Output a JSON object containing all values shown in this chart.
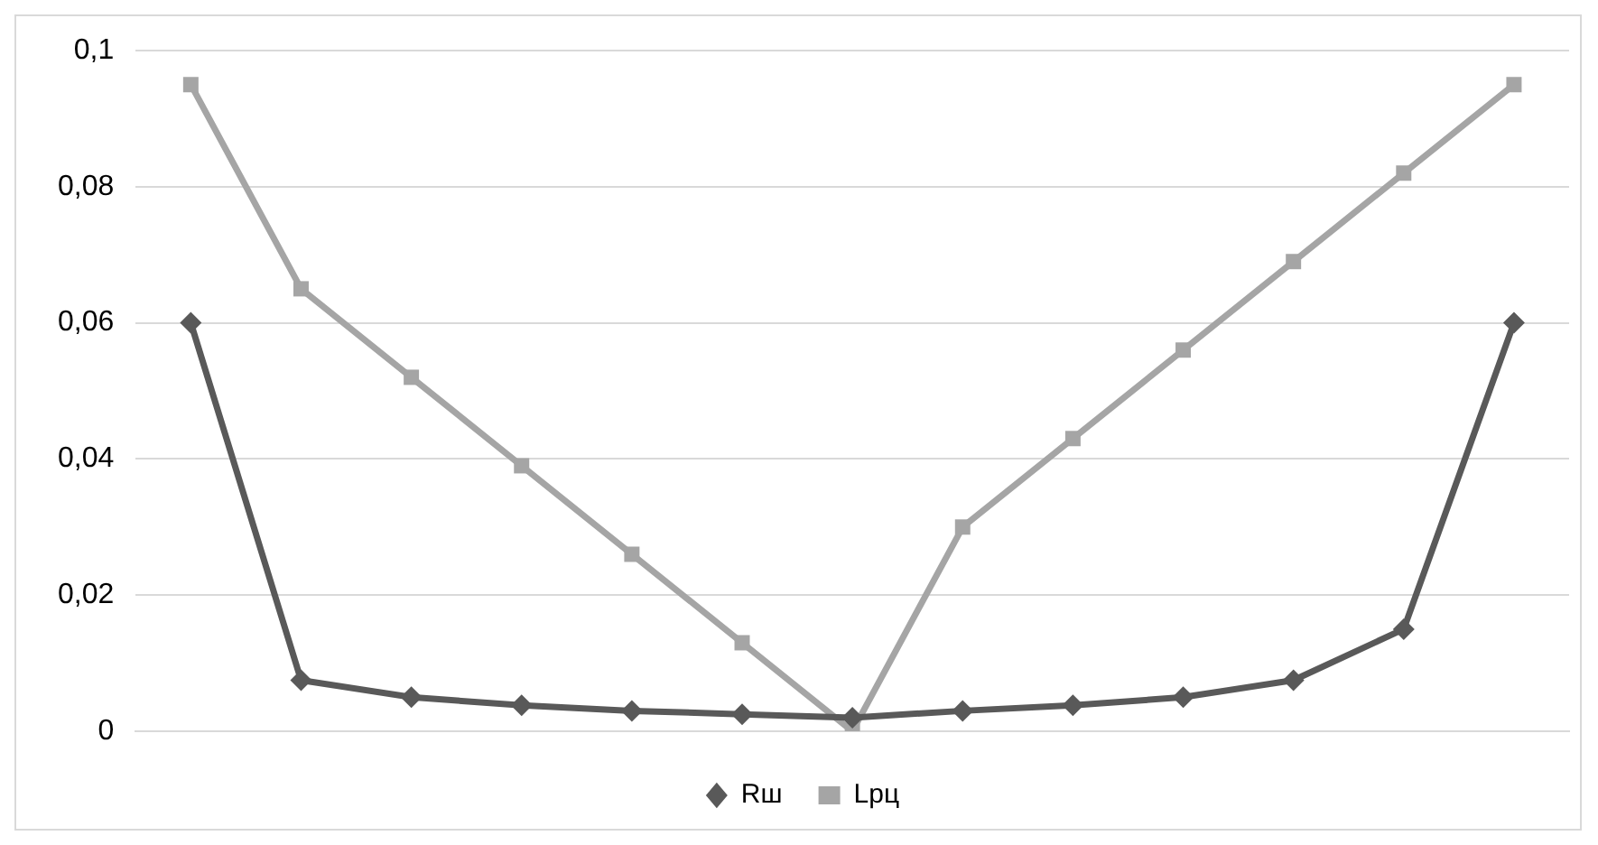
{
  "chart_data": {
    "type": "line",
    "categories": [
      null,
      null,
      null,
      null,
      null,
      null,
      null,
      null,
      null,
      null,
      null,
      null,
      null
    ],
    "series": [
      {
        "name": "Rш",
        "color": "#595959",
        "marker": "diamond",
        "values": [
          0.06,
          0.0075,
          0.005,
          0.0038,
          0.003,
          0.0025,
          0.002,
          0.003,
          0.0038,
          0.005,
          0.0075,
          0.015,
          0.06
        ]
      },
      {
        "name": "Lpц",
        "color": "#a5a5a5",
        "marker": "square",
        "values": [
          0.095,
          0.065,
          0.052,
          0.039,
          0.026,
          0.013,
          0,
          0.03,
          0.043,
          0.056,
          0.069,
          0.082,
          0.095
        ]
      }
    ],
    "ylim": [
      0,
      0.1
    ],
    "yticks": [
      0,
      {
        "value": 0.02,
        "label": "0,02"
      },
      {
        "value": 0.04,
        "label": "0,04"
      },
      {
        "value": 0.06,
        "label": "0,06"
      },
      {
        "value": 0.08,
        "label": "0,08"
      },
      {
        "value": 0.1,
        "label": "0,1"
      }
    ],
    "grid": "y",
    "legend": "bottom",
    "tick_labels": "y",
    "line_style": "solid"
  }
}
